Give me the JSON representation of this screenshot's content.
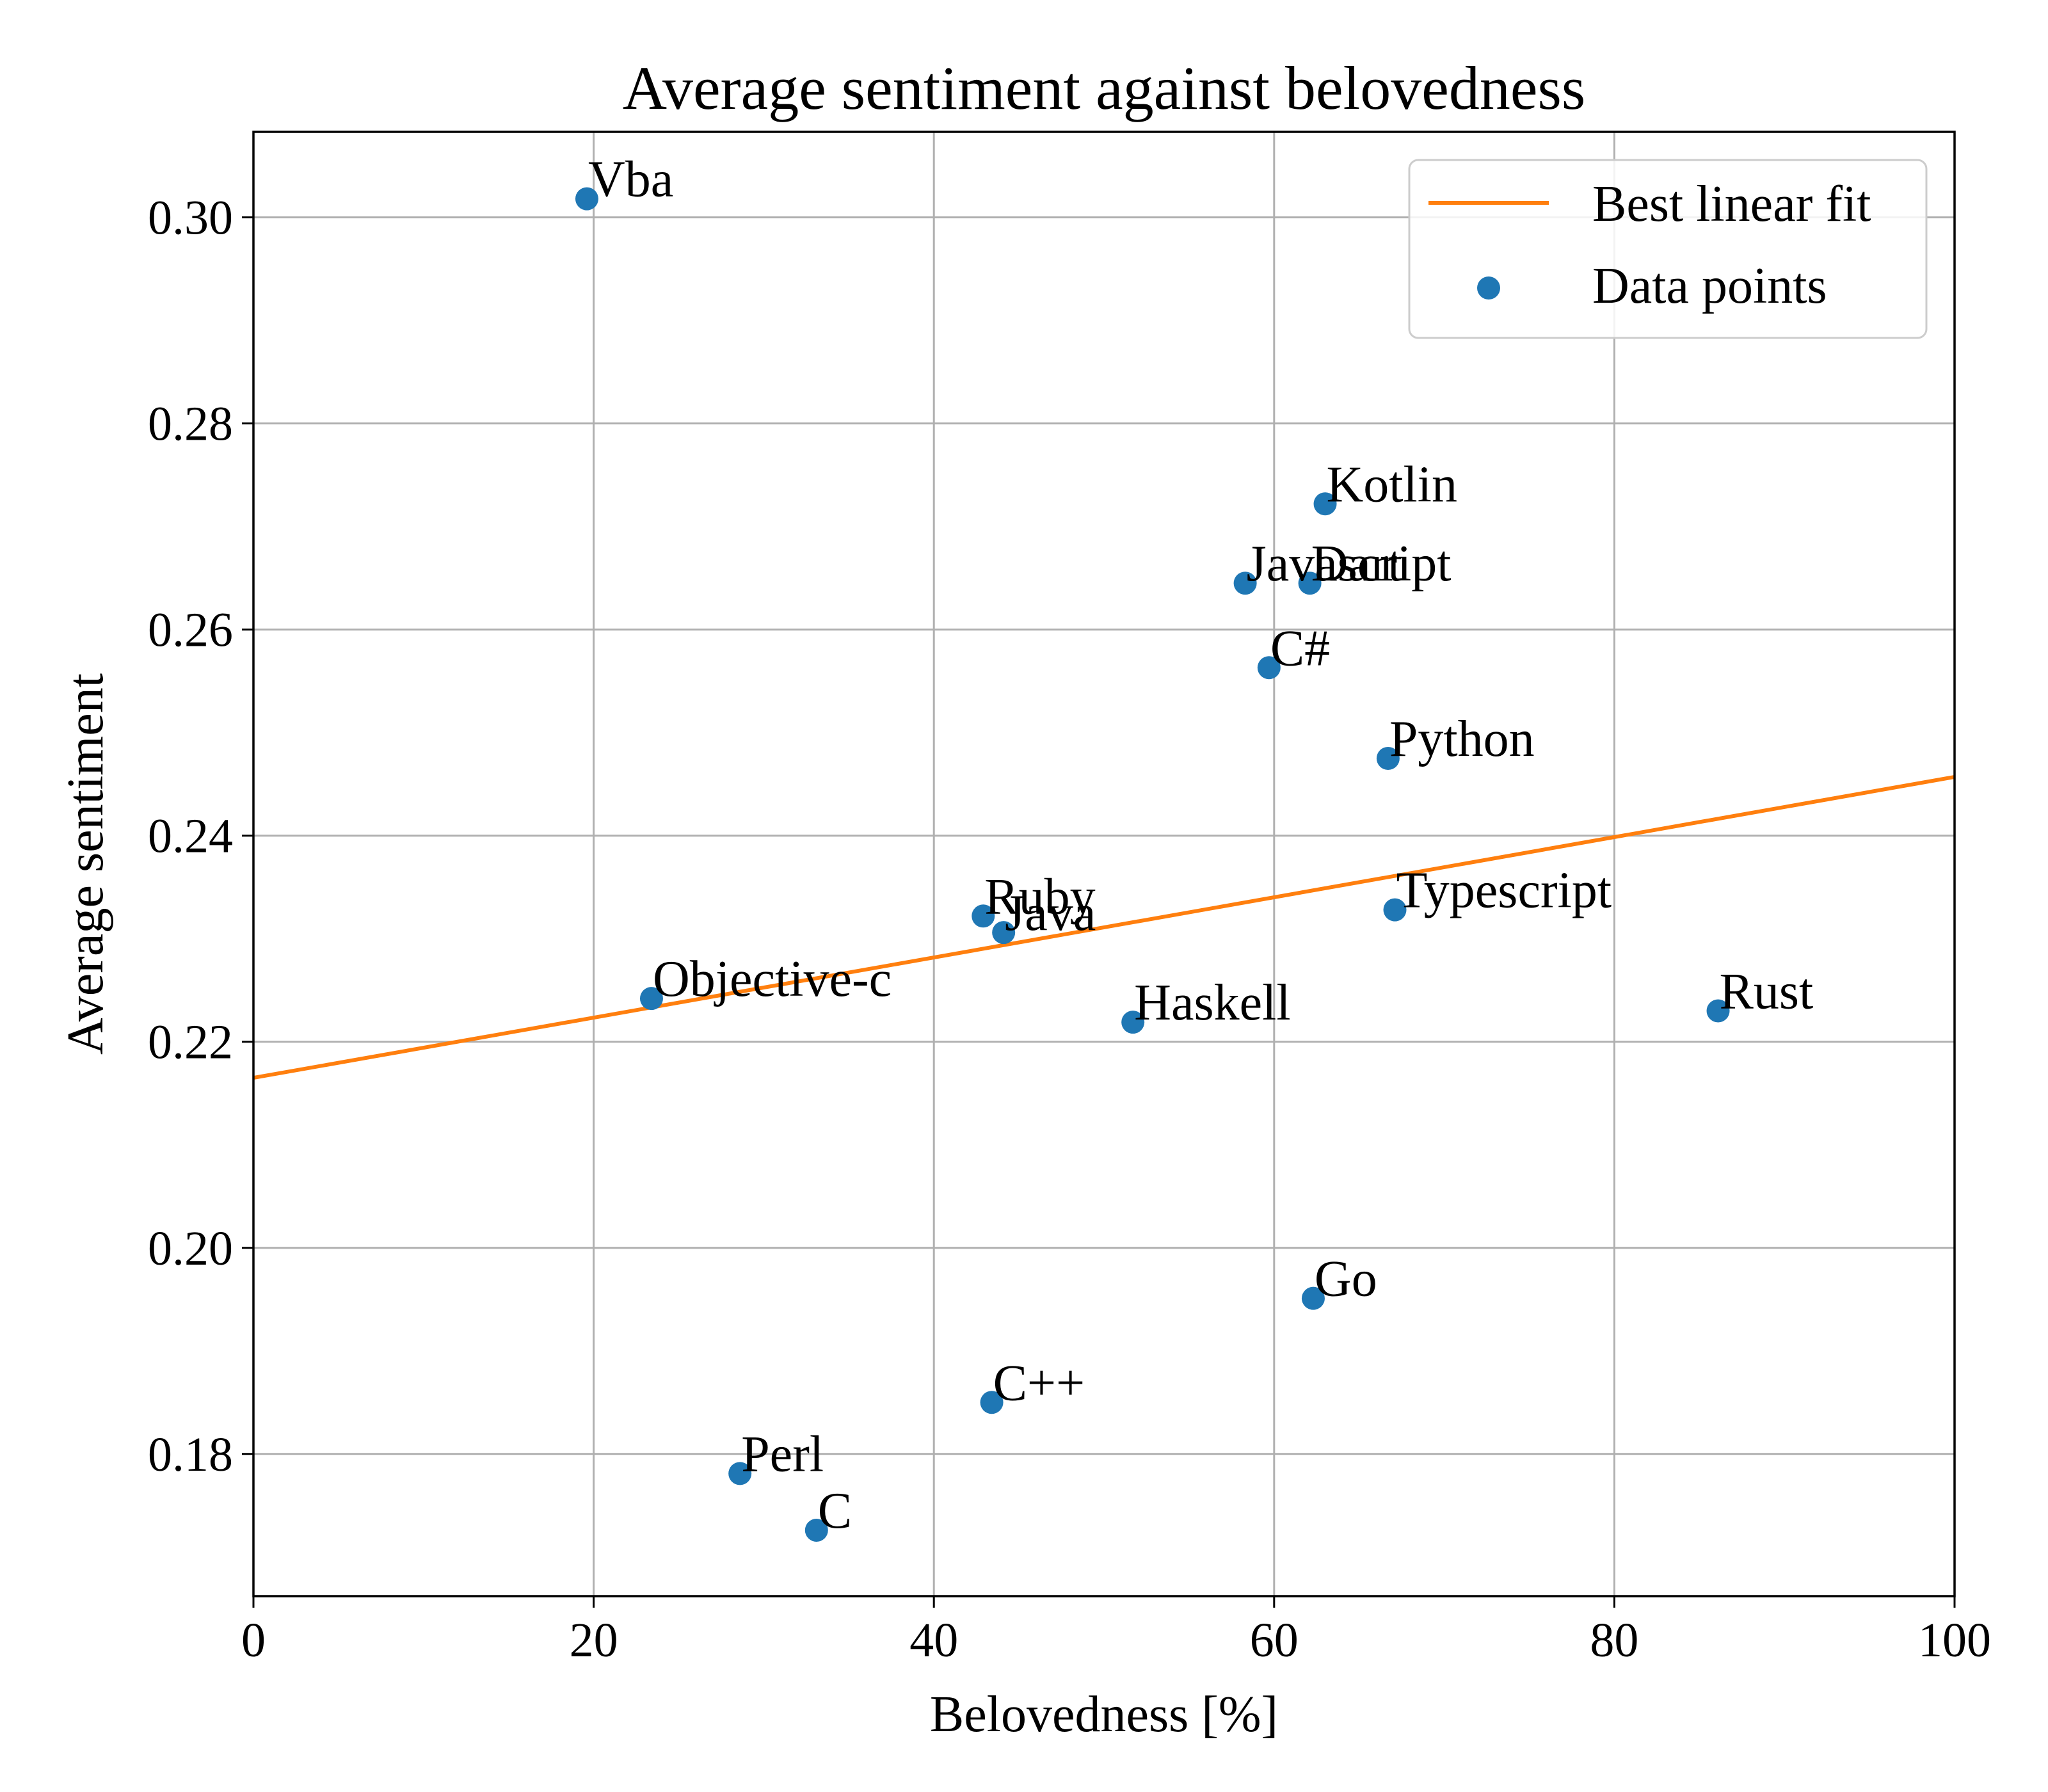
{
  "chart_data": {
    "type": "scatter",
    "title": "Average sentiment against belovedness",
    "xlabel": "Belovedness [%]",
    "ylabel": "Average sentiment",
    "xlim": [
      0,
      100
    ],
    "ylim": [
      0.1662,
      0.3083
    ],
    "x_ticks": [
      0,
      20,
      40,
      60,
      80,
      100
    ],
    "x_tick_labels": [
      "0",
      "20",
      "40",
      "60",
      "80",
      "100"
    ],
    "y_ticks": [
      0.18,
      0.2,
      0.22,
      0.24,
      0.26,
      0.28,
      0.3
    ],
    "y_tick_labels": [
      "0.18",
      "0.20",
      "0.22",
      "0.24",
      "0.26",
      "0.28",
      "0.30"
    ],
    "grid": true,
    "legend_position": "top-right",
    "series": [
      {
        "name": "Best linear fit",
        "kind": "line",
        "color": "#ff7f0e",
        "points": [
          [
            0,
            0.2165
          ],
          [
            100,
            0.2457
          ]
        ]
      },
      {
        "name": "Data points",
        "kind": "scatter",
        "color": "#1f77b4",
        "points": [
          {
            "label": "Vba",
            "x": 19.6,
            "y": 0.3018
          },
          {
            "label": "Kotlin",
            "x": 63.0,
            "y": 0.2722
          },
          {
            "label": "Javascript",
            "x": 58.3,
            "y": 0.2645
          },
          {
            "label": "Dart",
            "x": 62.1,
            "y": 0.2645
          },
          {
            "label": "C#",
            "x": 59.7,
            "y": 0.2563
          },
          {
            "label": "Python",
            "x": 66.7,
            "y": 0.2475
          },
          {
            "label": "Typescript",
            "x": 67.1,
            "y": 0.2328
          },
          {
            "label": "Ruby",
            "x": 42.9,
            "y": 0.2322
          },
          {
            "label": "Java",
            "x": 44.1,
            "y": 0.2306
          },
          {
            "label": "Objective-c",
            "x": 23.4,
            "y": 0.2242
          },
          {
            "label": "Haskell",
            "x": 51.7,
            "y": 0.2219
          },
          {
            "label": "Rust",
            "x": 86.1,
            "y": 0.223
          },
          {
            "label": "Go",
            "x": 62.3,
            "y": 0.1951
          },
          {
            "label": "C++",
            "x": 43.4,
            "y": 0.185
          },
          {
            "label": "Perl",
            "x": 28.6,
            "y": 0.1781
          },
          {
            "label": "C",
            "x": 33.1,
            "y": 0.1726
          }
        ]
      }
    ]
  }
}
